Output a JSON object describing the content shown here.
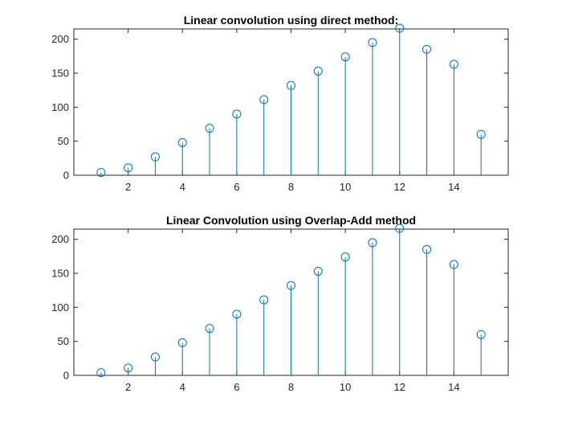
{
  "colors": {
    "series": "#0072BD",
    "axes": "#262626",
    "background": "#ffffff"
  },
  "chart_data": [
    {
      "type": "stem",
      "title": "Linear convolution using direct method:",
      "xlabel": "",
      "ylabel": "",
      "xlim": [
        0,
        16
      ],
      "ylim": [
        0,
        215
      ],
      "xticks": [
        2,
        4,
        6,
        8,
        10,
        12,
        14
      ],
      "yticks": [
        0,
        50,
        100,
        150,
        200
      ],
      "grid": false,
      "marker": "circle",
      "x": [
        1,
        2,
        3,
        4,
        5,
        6,
        7,
        8,
        9,
        10,
        11,
        12,
        13,
        14,
        15
      ],
      "y": [
        4,
        11,
        27,
        48,
        69,
        90,
        111,
        132,
        153,
        174,
        195,
        216,
        185,
        163,
        60
      ]
    },
    {
      "type": "stem",
      "title": "Linear Convolution using Overlap-Add method",
      "xlabel": "",
      "ylabel": "",
      "xlim": [
        0,
        16
      ],
      "ylim": [
        0,
        215
      ],
      "xticks": [
        2,
        4,
        6,
        8,
        10,
        12,
        14
      ],
      "yticks": [
        0,
        50,
        100,
        150,
        200
      ],
      "grid": false,
      "marker": "circle",
      "x": [
        1,
        2,
        3,
        4,
        5,
        6,
        7,
        8,
        9,
        10,
        11,
        12,
        13,
        14,
        15
      ],
      "y": [
        4,
        11,
        27,
        48,
        69,
        90,
        111,
        132,
        153,
        174,
        195,
        216,
        185,
        163,
        60
      ]
    }
  ]
}
